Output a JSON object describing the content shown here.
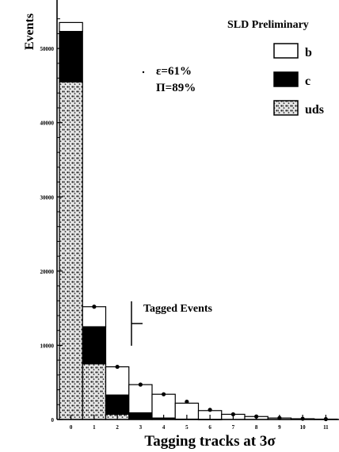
{
  "chart_data": {
    "type": "bar",
    "stacked": true,
    "title": "SLD Preliminary",
    "xlabel": "Tagging tracks at 3σ",
    "ylabel": "Events",
    "categories": [
      "0",
      "1",
      "2",
      "3",
      "4",
      "5",
      "6",
      "7",
      "8",
      "9",
      "10",
      "11"
    ],
    "ylim": [
      0,
      56000
    ],
    "yticks": [
      0,
      10000,
      20000,
      30000,
      40000,
      50000
    ],
    "ytick_labels": [
      "0",
      "10000",
      "20000",
      "30000",
      "40000",
      "50000"
    ],
    "series": [
      {
        "name": "uds",
        "values": [
          45500,
          7500,
          700,
          0,
          0,
          0,
          0,
          0,
          0,
          0,
          0,
          0
        ],
        "fill": "dotted"
      },
      {
        "name": "c",
        "values": [
          6800,
          5000,
          2600,
          900,
          200,
          50,
          10,
          0,
          0,
          0,
          0,
          0
        ],
        "fill": "#000000"
      },
      {
        "name": "b",
        "values": [
          1200,
          2700,
          3800,
          3800,
          3200,
          2150,
          1190,
          700,
          400,
          200,
          100,
          50
        ],
        "fill": "#ffffff"
      }
    ],
    "data_points": [
      52000,
      15200,
      7100,
      4700,
      3400,
      2400,
      1300,
      700,
      400,
      200,
      100,
      50
    ],
    "annotations": {
      "efficiency": "ε=61%",
      "purity": "Π=89%",
      "tagged": "Tagged Events"
    },
    "legend_position": "top-right",
    "grid": false
  }
}
